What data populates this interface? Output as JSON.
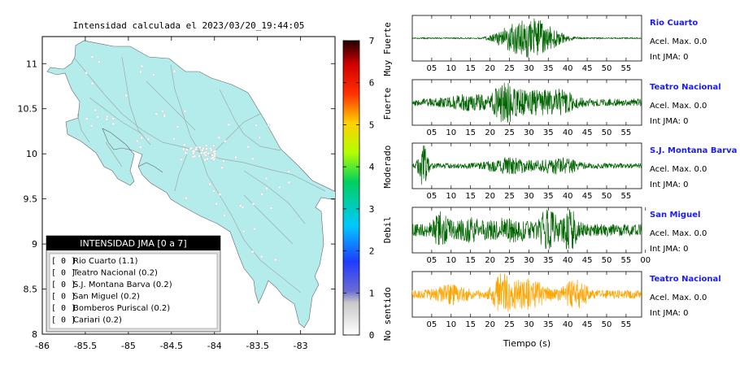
{
  "map": {
    "title": "Intensidad calculada el 2023/03/20_19:44:05",
    "x_ticks": [
      "-86",
      "-85.5",
      "-85",
      "-84.5",
      "-84",
      "-83.5",
      "-83"
    ],
    "y_ticks": [
      "11",
      "10.5",
      "10",
      "9.5",
      "9",
      "8.5",
      "8"
    ],
    "xlim": [
      -86,
      -82.6
    ],
    "ylim": [
      8,
      11.3
    ],
    "land_color": "#b4ecec",
    "legend": {
      "title": "INTENSIDAD JMA [0 a 7]",
      "items": [
        {
          "value": "[ 0 ]",
          "label": "Rio Cuarto (1.1)"
        },
        {
          "value": "[ 0 ]",
          "label": "Teatro Nacional (0.2)"
        },
        {
          "value": "[ 0 ]",
          "label": "S.J. Montana Barva (0.2)"
        },
        {
          "value": "[ 0 ]",
          "label": "San Miguel (0.2)"
        },
        {
          "value": "[ 0 ]",
          "label": "Bomberos Puriscal (0.2)"
        },
        {
          "value": "[ 0 ]",
          "label": "Cariari (0.2)"
        }
      ]
    }
  },
  "colorbar": {
    "ticks": [
      "0",
      "1",
      "2",
      "3",
      "4",
      "5",
      "6",
      "7"
    ],
    "range": [
      0,
      7
    ],
    "labels": [
      "No sentido",
      "Debil",
      "Moderado",
      "Fuerte",
      "Muy Fuerte"
    ],
    "label_levels": [
      0.5,
      2.5,
      4,
      5.5,
      6.8
    ]
  },
  "chart_data": {
    "type": "line",
    "xlabel": "Tiempo (s)",
    "x_ticks": [
      [
        "05",
        "10",
        "15",
        "20",
        "25",
        "30",
        "35",
        "40",
        "45",
        "50",
        "55"
      ],
      [
        "05",
        "10",
        "15",
        "20",
        "25",
        "30",
        "35",
        "40",
        "45",
        "50",
        "55"
      ],
      [
        "05",
        "10",
        "15",
        "20",
        "25",
        "30",
        "35",
        "40",
        "45",
        "50",
        "55"
      ],
      [
        "05",
        "10",
        "15",
        "20",
        "25",
        "30",
        "35",
        "40",
        "45",
        "50",
        "55",
        "00"
      ],
      [
        "05",
        "10",
        "15",
        "20",
        "25",
        "30",
        "35",
        "40",
        "45",
        "50",
        "55"
      ]
    ],
    "series": [
      {
        "name": "Rio Cuarto",
        "acel": "Acel. Max. 0.0",
        "int": "Int JMA: 0",
        "color": "#006400",
        "bursts": [
          [
            30,
            0.95,
            4.5
          ],
          [
            24.5,
            0.35,
            4
          ],
          [
            36,
            0.35,
            4
          ]
        ],
        "noise": 0.03
      },
      {
        "name": "Teatro Nacional",
        "acel": "Acel. Max. 0.0",
        "int": "Int JMA: 0",
        "color": "#006400",
        "bursts": [
          [
            23.5,
            0.85,
            2.5
          ],
          [
            30,
            0.5,
            5
          ],
          [
            38,
            0.45,
            4
          ],
          [
            15,
            0.25,
            6
          ]
        ],
        "noise": 0.18
      },
      {
        "name": "S.J. Montana Barva",
        "acel": "Acel. Max. 0.0",
        "int": "Int JMA: 0",
        "color": "#006400",
        "bursts": [
          [
            2.8,
            0.95,
            1.2
          ],
          [
            25,
            0.3,
            6
          ],
          [
            38,
            0.3,
            5
          ]
        ],
        "noise": 0.12
      },
      {
        "name": "San Miguel",
        "acel": "Acel. Max. 0.0",
        "int": "Int JMA: 0",
        "color": "#006400",
        "bursts": [
          [
            7.5,
            0.65,
            2
          ],
          [
            35,
            0.95,
            2
          ],
          [
            40.5,
            0.75,
            2
          ],
          [
            25,
            0.35,
            5
          ],
          [
            15,
            0.3,
            4
          ]
        ],
        "noise": 0.3
      },
      {
        "name": "Teatro Nacional",
        "acel": "Acel. Max. 0.0",
        "int": "Int JMA: 0",
        "color": "#ffa500",
        "bursts": [
          [
            23.5,
            0.95,
            2.5
          ],
          [
            30,
            0.55,
            5
          ],
          [
            42,
            0.55,
            3
          ],
          [
            10,
            0.3,
            4
          ]
        ],
        "noise": 0.2
      }
    ]
  }
}
